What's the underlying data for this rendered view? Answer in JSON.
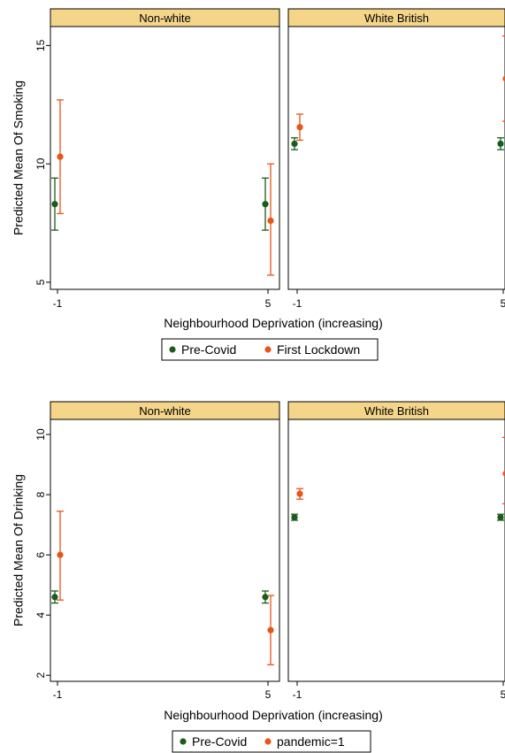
{
  "colors": {
    "pre": "#1a5c1a",
    "post": "#e8541a",
    "strip": "#f4d58a",
    "axis": "#000000"
  },
  "chart_data": [
    {
      "type": "scatter",
      "panels": [
        "Non-white",
        "White British"
      ],
      "ylabel": "Predicted Mean Of Smoking",
      "xlabel": "Neighbourhood Deprivation (increasing)",
      "xticks": [
        "-1",
        "5"
      ],
      "ylim": [
        4.7,
        15.8
      ],
      "yticks": [
        5,
        10,
        15
      ],
      "legend": [
        "Pre-Covid",
        "First Lockdown"
      ],
      "series": [
        {
          "name": "Pre-Covid",
          "points": [
            {
              "panel": 0,
              "x": -1,
              "y": 8.3,
              "lo": 7.2,
              "hi": 9.4
            },
            {
              "panel": 0,
              "x": 5,
              "y": 8.3,
              "lo": 7.2,
              "hi": 9.4
            },
            {
              "panel": 1,
              "x": -1,
              "y": 10.85,
              "lo": 10.6,
              "hi": 11.1
            },
            {
              "panel": 1,
              "x": 5,
              "y": 10.85,
              "lo": 10.6,
              "hi": 11.1
            }
          ]
        },
        {
          "name": "First Lockdown",
          "points": [
            {
              "panel": 0,
              "x": -1,
              "y": 10.3,
              "lo": 7.9,
              "hi": 12.7
            },
            {
              "panel": 0,
              "x": 5,
              "y": 7.6,
              "lo": 5.3,
              "hi": 10.0
            },
            {
              "panel": 1,
              "x": -1,
              "y": 11.55,
              "lo": 11.0,
              "hi": 12.1
            },
            {
              "panel": 1,
              "x": 5,
              "y": 13.6,
              "lo": 11.8,
              "hi": 15.4
            }
          ]
        }
      ]
    },
    {
      "type": "scatter",
      "panels": [
        "Non-white",
        "White British"
      ],
      "ylabel": "Predicted Mean Of Drinking",
      "xlabel": "Neighbourhood Deprivation (increasing)",
      "xticks": [
        "-1",
        "5"
      ],
      "ylim": [
        1.8,
        10.5
      ],
      "yticks": [
        2,
        4,
        6,
        8,
        10
      ],
      "legend": [
        "Pre-Covid",
        "pandemic=1"
      ],
      "series": [
        {
          "name": "Pre-Covid",
          "points": [
            {
              "panel": 0,
              "x": -1,
              "y": 4.6,
              "lo": 4.4,
              "hi": 4.8
            },
            {
              "panel": 0,
              "x": 5,
              "y": 4.6,
              "lo": 4.4,
              "hi": 4.8
            },
            {
              "panel": 1,
              "x": -1,
              "y": 7.25,
              "lo": 7.15,
              "hi": 7.35
            },
            {
              "panel": 1,
              "x": 5,
              "y": 7.25,
              "lo": 7.15,
              "hi": 7.35
            }
          ]
        },
        {
          "name": "pandemic=1",
          "points": [
            {
              "panel": 0,
              "x": -1,
              "y": 6.0,
              "lo": 4.5,
              "hi": 7.45
            },
            {
              "panel": 0,
              "x": 5,
              "y": 3.5,
              "lo": 2.35,
              "hi": 4.65
            },
            {
              "panel": 1,
              "x": -1,
              "y": 8.03,
              "lo": 7.85,
              "hi": 8.2
            },
            {
              "panel": 1,
              "x": 5,
              "y": 8.7,
              "lo": 7.7,
              "hi": 9.9
            }
          ]
        }
      ]
    }
  ]
}
